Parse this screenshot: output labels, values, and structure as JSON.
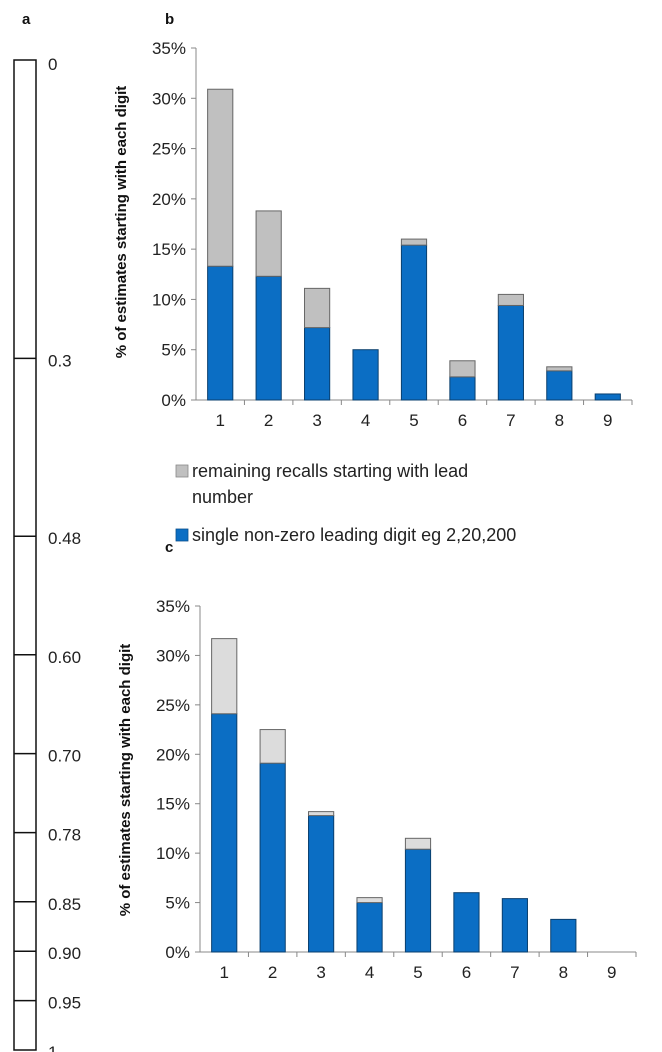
{
  "panel_labels": {
    "a": "a",
    "b": "b",
    "c": "c"
  },
  "scale_a": {
    "ticks": [
      {
        "label": "0",
        "value": 0
      },
      {
        "label": "0.3",
        "value": 0.3
      },
      {
        "label": "0.48",
        "value": 0.48
      },
      {
        "label": "0.60",
        "value": 0.6
      },
      {
        "label": "0.70",
        "value": 0.7
      },
      {
        "label": "0.78",
        "value": 0.78
      },
      {
        "label": "0.85",
        "value": 0.85
      },
      {
        "label": "0.90",
        "value": 0.9
      },
      {
        "label": "0.95",
        "value": 0.95
      },
      {
        "label": "1",
        "value": 1
      }
    ]
  },
  "legend": {
    "items": [
      {
        "label": "remaining recalls starting with lead",
        "label2": "number",
        "color": "#c0c0c0"
      },
      {
        "label": "single non-zero leading digit eg 2,20,200",
        "label2": "",
        "color": "#0b6ec4"
      }
    ]
  },
  "chart_data": [
    {
      "type": "bar",
      "panel": "b",
      "stacked": true,
      "categories": [
        "1",
        "2",
        "3",
        "4",
        "5",
        "6",
        "7",
        "8",
        "9"
      ],
      "ylabel": "% of estimates starting  with each digit",
      "ylim": [
        0,
        35
      ],
      "yticks": [
        0,
        5,
        10,
        15,
        20,
        25,
        30,
        35
      ],
      "ytick_labels": [
        "0%",
        "5%",
        "10%",
        "15%",
        "20%",
        "25%",
        "30%",
        "35%"
      ],
      "series": [
        {
          "name": "single non-zero leading digit eg 2,20,200",
          "color": "#0b6ec4",
          "values": [
            13.3,
            12.3,
            7.2,
            5.0,
            15.4,
            2.3,
            9.4,
            2.9,
            0.6
          ]
        },
        {
          "name": "remaining recalls starting with lead number",
          "color": "#c0c0c0",
          "values": [
            17.6,
            6.5,
            3.9,
            0,
            0.6,
            1.6,
            1.1,
            0.4,
            0
          ]
        }
      ]
    },
    {
      "type": "bar",
      "panel": "c",
      "stacked": true,
      "categories": [
        "1",
        "2",
        "3",
        "4",
        "5",
        "6",
        "7",
        "8",
        "9"
      ],
      "ylabel": "% of estimates starting  with each digit",
      "ylim": [
        0,
        35
      ],
      "yticks": [
        0,
        5,
        10,
        15,
        20,
        25,
        30,
        35
      ],
      "ytick_labels": [
        "0%",
        "5%",
        "10%",
        "15%",
        "20%",
        "25%",
        "30%",
        "35%"
      ],
      "series": [
        {
          "name": "single non-zero leading digit eg 2,20,200",
          "color": "#0b6ec4",
          "values": [
            24.1,
            19.1,
            13.8,
            5.0,
            10.4,
            6.0,
            5.4,
            3.3,
            0
          ]
        },
        {
          "name": "remaining recalls starting with lead number",
          "color": "#dcdcdc",
          "values": [
            7.6,
            3.4,
            0.4,
            0.5,
            1.1,
            0,
            0,
            0,
            0
          ]
        }
      ]
    }
  ]
}
